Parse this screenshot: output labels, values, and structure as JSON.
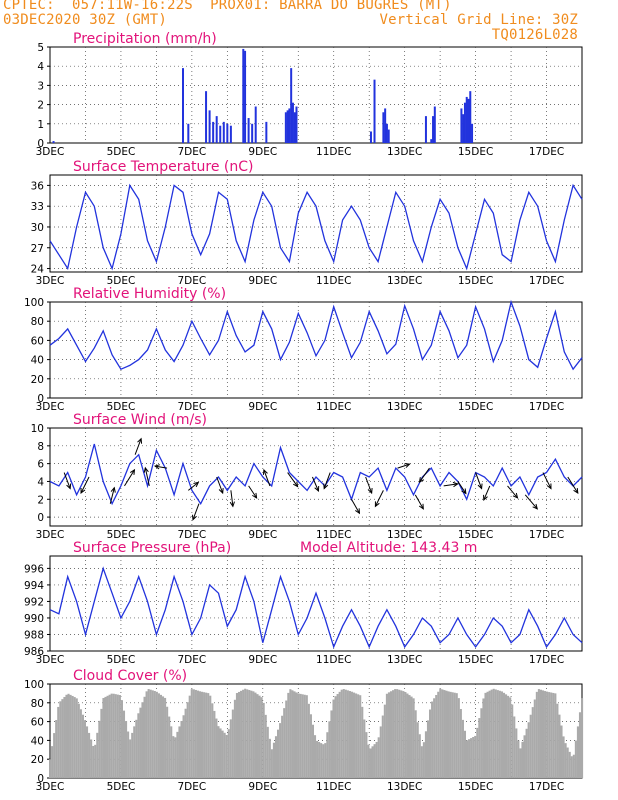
{
  "header": {
    "line1": "CPTEC:  057:11W-16:22S  PROX01: BARRA DO BUGRES (MT)",
    "line2_left": "03DEC2020 30Z (GMT)",
    "line2_right": "Vertical Grid Line: 30Z",
    "line3_right": "TQ0126L028"
  },
  "colors": {
    "header": "#f08c1e",
    "title": "#e2137a",
    "line": "#2233dd",
    "cloud": "#aaaaaa",
    "arrow": "#000000"
  },
  "chart_data": [
    {
      "id": "precip",
      "type": "bar",
      "title": "Precipitation (mm/h)",
      "ylim": [
        0,
        5
      ],
      "yticks": [
        0,
        1,
        2,
        3,
        4,
        5
      ],
      "x": [
        0.1,
        3.75,
        3.9,
        4.4,
        4.5,
        4.6,
        4.7,
        4.8,
        4.9,
        5.0,
        5.1,
        5.45,
        5.5,
        5.6,
        5.7,
        5.8,
        6.1,
        6.65,
        6.7,
        6.75,
        6.8,
        6.85,
        6.9,
        6.95,
        9.05,
        9.15,
        9.4,
        9.45,
        9.5,
        9.55,
        10.6,
        10.75,
        10.8,
        10.85,
        11.6,
        11.65,
        11.7,
        11.75,
        11.8,
        11.85,
        11.9
      ],
      "values": [
        0.1,
        3.9,
        1.0,
        2.7,
        1.7,
        1.1,
        1.4,
        0.9,
        1.1,
        1.0,
        0.9,
        4.9,
        4.8,
        1.3,
        1.0,
        1.9,
        1.1,
        1.6,
        1.7,
        1.8,
        3.9,
        2.1,
        1.6,
        1.9,
        0.6,
        3.3,
        1.6,
        1.8,
        1.0,
        0.7,
        1.4,
        0.2,
        1.4,
        1.9,
        1.8,
        1.5,
        2.1,
        2.4,
        2.3,
        2.7,
        1.0
      ],
      "xticks": [
        "3DEC",
        "5DEC",
        "7DEC",
        "9DEC",
        "11DEC",
        "13DEC",
        "15DEC",
        "17DEC"
      ]
    },
    {
      "id": "temp",
      "type": "line",
      "title": "Surface Temperature (nC)",
      "ylim": [
        23.5,
        37.5
      ],
      "yticks": [
        24,
        27,
        30,
        33,
        36
      ],
      "x": [
        0,
        0.25,
        0.5,
        0.75,
        1,
        1.25,
        1.5,
        1.75,
        2,
        2.25,
        2.5,
        2.75,
        3,
        3.25,
        3.5,
        3.75,
        4,
        4.25,
        4.5,
        4.75,
        5,
        5.25,
        5.5,
        5.75,
        6,
        6.25,
        6.5,
        6.75,
        7,
        7.25,
        7.5,
        7.75,
        8,
        8.25,
        8.5,
        8.75,
        9,
        9.25,
        9.5,
        9.75,
        10,
        10.25,
        10.5,
        10.75,
        11,
        11.25,
        11.5,
        11.75,
        12,
        12.25,
        12.5,
        12.75,
        13,
        13.25,
        13.5,
        13.75,
        14,
        14.25,
        14.5,
        14.75,
        15
      ],
      "values": [
        28,
        26,
        24,
        30,
        35,
        33,
        27,
        24,
        29,
        36,
        34,
        28,
        25,
        30,
        36,
        35,
        29,
        26,
        29,
        35,
        34,
        28,
        25,
        31,
        35,
        33,
        27,
        25,
        32,
        35,
        33,
        28,
        25,
        31,
        33,
        31,
        27,
        25,
        30,
        35,
        33,
        28,
        25,
        30,
        34,
        32,
        27,
        24,
        29,
        34,
        32,
        26,
        25,
        31,
        35,
        33,
        28,
        25,
        31,
        36,
        34
      ],
      "xticks": [
        "3DEC",
        "5DEC",
        "7DEC",
        "9DEC",
        "11DEC",
        "13DEC",
        "15DEC",
        "17DEC"
      ]
    },
    {
      "id": "rh",
      "type": "line",
      "title": "Relative Humidity (%)",
      "ylim": [
        0,
        100
      ],
      "yticks": [
        0,
        20,
        40,
        60,
        80,
        100
      ],
      "x": [
        0,
        0.25,
        0.5,
        0.75,
        1,
        1.25,
        1.5,
        1.75,
        2,
        2.25,
        2.5,
        2.75,
        3,
        3.25,
        3.5,
        3.75,
        4,
        4.25,
        4.5,
        4.75,
        5,
        5.25,
        5.5,
        5.75,
        6,
        6.25,
        6.5,
        6.75,
        7,
        7.25,
        7.5,
        7.75,
        8,
        8.25,
        8.5,
        8.75,
        9,
        9.25,
        9.5,
        9.75,
        10,
        10.25,
        10.5,
        10.75,
        11,
        11.25,
        11.5,
        11.75,
        12,
        12.25,
        12.5,
        12.75,
        13,
        13.25,
        13.5,
        13.75,
        14,
        14.25,
        14.5,
        14.75,
        15
      ],
      "values": [
        55,
        62,
        72,
        55,
        38,
        52,
        70,
        45,
        30,
        34,
        40,
        50,
        72,
        50,
        38,
        55,
        80,
        62,
        45,
        60,
        90,
        65,
        48,
        55,
        90,
        72,
        40,
        58,
        88,
        68,
        44,
        60,
        95,
        68,
        42,
        58,
        90,
        70,
        46,
        56,
        96,
        72,
        40,
        55,
        90,
        70,
        42,
        55,
        95,
        72,
        38,
        60,
        100,
        75,
        40,
        32,
        62,
        90,
        48,
        30,
        42
      ],
      "xticks": [
        "3DEC",
        "5DEC",
        "7DEC",
        "9DEC",
        "11DEC",
        "13DEC",
        "15DEC",
        "17DEC"
      ]
    },
    {
      "id": "wind",
      "type": "line",
      "title": "Surface Wind (m/s)",
      "ylim": [
        -1,
        10
      ],
      "yticks": [
        0,
        2,
        4,
        6,
        8,
        10
      ],
      "x": [
        0,
        0.25,
        0.5,
        0.75,
        1,
        1.25,
        1.5,
        1.75,
        2,
        2.25,
        2.5,
        2.75,
        3,
        3.25,
        3.5,
        3.75,
        4,
        4.25,
        4.5,
        4.75,
        5,
        5.25,
        5.5,
        5.75,
        6,
        6.25,
        6.5,
        6.75,
        7,
        7.25,
        7.5,
        7.75,
        8,
        8.25,
        8.5,
        8.75,
        9,
        9.25,
        9.5,
        9.75,
        10,
        10.25,
        10.5,
        10.75,
        11,
        11.25,
        11.5,
        11.75,
        12,
        12.25,
        12.5,
        12.75,
        13,
        13.25,
        13.5,
        13.75,
        14,
        14.25,
        14.5,
        14.75,
        15
      ],
      "values": [
        4.0,
        3.5,
        5.0,
        2.5,
        4.5,
        8.2,
        4.0,
        1.5,
        3.5,
        6.0,
        7.0,
        3.5,
        7.5,
        5.5,
        2.5,
        6.0,
        3.0,
        1.5,
        3.5,
        4.5,
        3.0,
        4.5,
        3.5,
        6.0,
        4.5,
        3.5,
        7.8,
        5.0,
        4.0,
        3.0,
        4.5,
        3.5,
        5.0,
        4.5,
        2.0,
        5.0,
        4.5,
        5.5,
        3.0,
        5.5,
        4.5,
        2.5,
        4.5,
        5.5,
        3.5,
        5.0,
        4.0,
        2.0,
        5.0,
        4.5,
        3.5,
        5.5,
        3.5,
        4.5,
        2.5,
        4.5,
        5.0,
        6.5,
        4.5,
        3.5,
        4.5
      ],
      "arrow_x": [
        0.4,
        1.1,
        1.7,
        2.1,
        2.4,
        2.8,
        3.3,
        3.9,
        4.2,
        4.7,
        5.1,
        5.6,
        6.2,
        6.7,
        7.4,
        7.9,
        8.5,
        8.9,
        9.4,
        9.8,
        10.3,
        10.7,
        11.1,
        11.5,
        12.0,
        12.4,
        12.9,
        13.4,
        13.9,
        14.6
      ],
      "arrow_u": [
        0.3,
        -0.4,
        0.2,
        0.5,
        0.3,
        -0.2,
        -0.6,
        0.5,
        -0.3,
        0.3,
        0.1,
        0.4,
        -0.3,
        0.5,
        0.3,
        -0.3,
        0.4,
        0.3,
        -0.4,
        0.6,
        0.4,
        -0.5,
        0.7,
        0.4,
        0.3,
        -0.3,
        0.5,
        0.6,
        0.4,
        0.5
      ],
      "arrow_v": [
        -0.8,
        -0.8,
        0.8,
        0.8,
        0.8,
        0.9,
        0.1,
        0.4,
        -0.8,
        -0.8,
        -0.8,
        -0.6,
        0.8,
        -0.7,
        -0.7,
        -0.8,
        -0.7,
        -0.8,
        -0.8,
        0.2,
        -0.7,
        -0.7,
        0.1,
        -0.6,
        -0.8,
        -0.7,
        -0.6,
        -0.7,
        -0.8,
        -0.8
      ],
      "xticks": [
        "3DEC",
        "5DEC",
        "7DEC",
        "9DEC",
        "11DEC",
        "13DEC",
        "15DEC",
        "17DEC"
      ]
    },
    {
      "id": "pres",
      "type": "line",
      "title": "Surface Pressure (hPa)",
      "annotation": "Model Altitude: 143.43 m",
      "ylim": [
        986,
        997.5
      ],
      "yticks": [
        986,
        988,
        990,
        992,
        994,
        996
      ],
      "x": [
        0,
        0.25,
        0.5,
        0.75,
        1,
        1.25,
        1.5,
        1.75,
        2,
        2.25,
        2.5,
        2.75,
        3,
        3.25,
        3.5,
        3.75,
        4,
        4.25,
        4.5,
        4.75,
        5,
        5.25,
        5.5,
        5.75,
        6,
        6.25,
        6.5,
        6.75,
        7,
        7.25,
        7.5,
        7.75,
        8,
        8.25,
        8.5,
        8.75,
        9,
        9.25,
        9.5,
        9.75,
        10,
        10.25,
        10.5,
        10.75,
        11,
        11.25,
        11.5,
        11.75,
        12,
        12.25,
        12.5,
        12.75,
        13,
        13.25,
        13.5,
        13.75,
        14,
        14.25,
        14.5,
        14.75,
        15
      ],
      "values": [
        991,
        990.5,
        995,
        992,
        988,
        992,
        996,
        993,
        990,
        992,
        995,
        992,
        988,
        991,
        995,
        992,
        988,
        990,
        994,
        993,
        989,
        991,
        995,
        992,
        987,
        991,
        995,
        992,
        988,
        990,
        993,
        990,
        986.5,
        989,
        991,
        989,
        986.5,
        989,
        991,
        989,
        986.5,
        988,
        990,
        989,
        987,
        988,
        990,
        988,
        986.5,
        988,
        990,
        989,
        987,
        988,
        991,
        989,
        986.5,
        988,
        990,
        988,
        987
      ],
      "xticks": [
        "3DEC",
        "5DEC",
        "7DEC",
        "9DEC",
        "11DEC",
        "13DEC",
        "15DEC",
        "17DEC"
      ]
    },
    {
      "id": "cloud",
      "type": "area",
      "title": "Cloud Cover (%)",
      "ylim": [
        0,
        100
      ],
      "yticks": [
        0,
        20,
        40,
        60,
        80,
        100
      ],
      "x": [
        0,
        0.25,
        0.5,
        0.75,
        1,
        1.25,
        1.5,
        1.75,
        2,
        2.25,
        2.5,
        2.75,
        3,
        3.25,
        3.5,
        3.75,
        4,
        4.25,
        4.5,
        4.75,
        5,
        5.25,
        5.5,
        5.75,
        6,
        6.25,
        6.5,
        6.75,
        7,
        7.25,
        7.5,
        7.75,
        8,
        8.25,
        8.5,
        8.75,
        9,
        9.25,
        9.5,
        9.75,
        10,
        10.25,
        10.5,
        10.75,
        11,
        11.25,
        11.5,
        11.75,
        12,
        12.25,
        12.5,
        12.75,
        13,
        13.25,
        13.5,
        13.75,
        14,
        14.25,
        14.5,
        14.75,
        15
      ],
      "values": [
        20,
        80,
        90,
        85,
        60,
        30,
        85,
        90,
        88,
        40,
        70,
        95,
        92,
        85,
        40,
        65,
        95,
        92,
        90,
        55,
        45,
        90,
        95,
        92,
        85,
        30,
        60,
        95,
        90,
        88,
        40,
        35,
        85,
        95,
        92,
        88,
        30,
        40,
        90,
        95,
        92,
        85,
        30,
        80,
        95,
        92,
        90,
        40,
        45,
        90,
        95,
        92,
        85,
        30,
        60,
        95,
        92,
        90,
        40,
        20,
        85
      ],
      "xticks": [
        "3DEC",
        "5DEC",
        "7DEC",
        "9DEC",
        "11DEC",
        "13DEC",
        "15DEC",
        "17DEC"
      ]
    }
  ]
}
